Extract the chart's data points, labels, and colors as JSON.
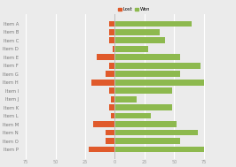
{
  "items": [
    "Item A",
    "Item B",
    "Item C",
    "Item D",
    "Item E",
    "Item F",
    "Item G",
    "Item H",
    "Item I",
    "Item J",
    "Item K",
    "Item L",
    "Item M",
    "Item N",
    "Item O",
    "Item P"
  ],
  "lost": [
    -5,
    -5,
    -5,
    -2,
    -15,
    -5,
    -8,
    -20,
    -5,
    -3,
    -5,
    -3,
    -18,
    -8,
    -8,
    -22
  ],
  "won": [
    65,
    38,
    42,
    28,
    55,
    72,
    55,
    75,
    48,
    18,
    48,
    30,
    52,
    70,
    55,
    75
  ],
  "lost_color": "#e05a2b",
  "won_color": "#8db94e",
  "background_color": "#ebebeb",
  "legend_lost": "Lost",
  "legend_won": "Won",
  "xlim": [
    -80,
    100
  ],
  "xticks": [
    -75,
    -50,
    -25,
    0,
    25,
    50,
    75
  ],
  "xtick_labels": [
    "75",
    "50",
    "25",
    "0",
    "25",
    "50",
    "75"
  ],
  "bar_height": 0.7,
  "grid_color": "#ffffff",
  "axis_label_color": "#999999",
  "text_color": "#777777",
  "label_fontsize": 3.8,
  "tick_fontsize": 3.5,
  "legend_fontsize": 3.8
}
